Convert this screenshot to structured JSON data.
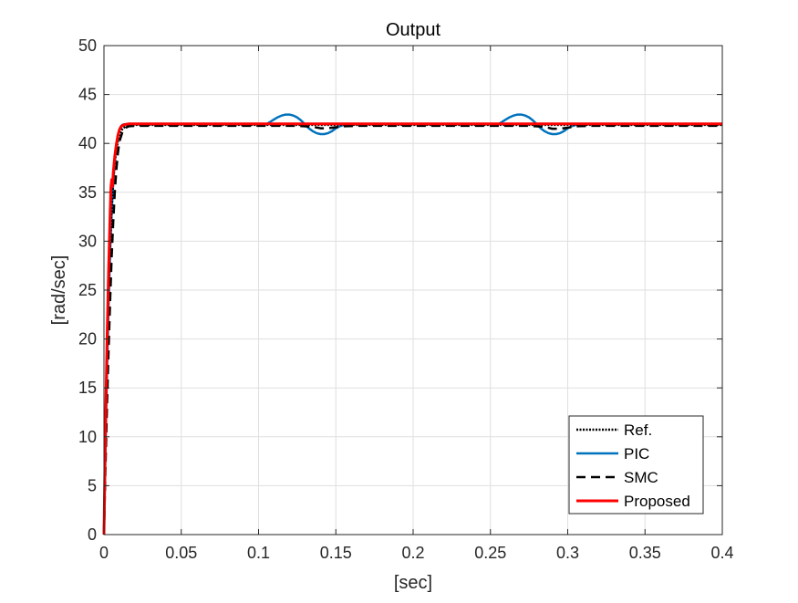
{
  "chart_data": {
    "type": "line",
    "title": "Output",
    "xlabel": "[sec]",
    "ylabel": "[rad/sec]",
    "xlim": [
      0,
      0.4
    ],
    "ylim": [
      0,
      50
    ],
    "xticks": [
      0,
      0.05,
      0.1,
      0.15,
      0.2,
      0.25,
      0.3,
      0.35,
      0.4
    ],
    "xtick_labels": [
      "0",
      "0.05",
      "0.1",
      "0.15",
      "0.2",
      "0.25",
      "0.3",
      "0.35",
      "0.4"
    ],
    "yticks": [
      0,
      5,
      10,
      15,
      20,
      25,
      30,
      35,
      40,
      45,
      50
    ],
    "ytick_labels": [
      "0",
      "5",
      "10",
      "15",
      "20",
      "25",
      "30",
      "35",
      "40",
      "45",
      "50"
    ],
    "grid": true,
    "legend_position": "bottom-right",
    "series": [
      {
        "name": "Ref.",
        "color": "#000000",
        "style": "dotted",
        "x": [
          0,
          0.001,
          0.002,
          0.003,
          0.004,
          0.005,
          0.006,
          0.007,
          0.008,
          0.009,
          0.01,
          0.012,
          0.014,
          0.016,
          0.02,
          0.03,
          0.1,
          0.2,
          0.3,
          0.4
        ],
        "y": [
          0,
          10,
          18.5,
          25,
          30,
          33.5,
          36.2,
          38,
          39.3,
          40.2,
          40.9,
          41.5,
          41.75,
          41.85,
          41.9,
          41.9,
          41.9,
          41.9,
          41.9,
          41.9
        ]
      },
      {
        "name": "PIC",
        "color": "#0072BD",
        "style": "solid",
        "x": [
          0,
          0.001,
          0.002,
          0.003,
          0.004,
          0.005,
          0.006,
          0.007,
          0.008,
          0.009,
          0.01,
          0.011,
          0.012,
          0.013,
          0.014,
          0.016,
          0.02,
          0.03,
          0.105,
          0.1075,
          0.11,
          0.1125,
          0.115,
          0.1175,
          0.12,
          0.1225,
          0.125,
          0.1275,
          0.13,
          0.1325,
          0.135,
          0.1375,
          0.14,
          0.1425,
          0.145,
          0.1475,
          0.15,
          0.1525,
          0.155,
          0.1575,
          0.16,
          0.255,
          0.2575,
          0.26,
          0.2625,
          0.265,
          0.2675,
          0.27,
          0.2725,
          0.275,
          0.2775,
          0.28,
          0.2825,
          0.285,
          0.2875,
          0.29,
          0.2925,
          0.295,
          0.2975,
          0.3,
          0.3025,
          0.305,
          0.3075,
          0.31,
          0.32,
          0.4
        ],
        "y": [
          0,
          9,
          17,
          23.5,
          29,
          33,
          36,
          38.3,
          39.8,
          40.8,
          41.4,
          41.75,
          41.9,
          41.95,
          41.95,
          41.95,
          41.95,
          41.95,
          41.95,
          42.2,
          42.45,
          42.68,
          42.85,
          42.95,
          42.95,
          42.85,
          42.65,
          42.35,
          41.95,
          41.55,
          41.25,
          41.05,
          40.95,
          40.95,
          41.05,
          41.25,
          41.55,
          41.75,
          41.88,
          41.93,
          41.95,
          41.95,
          42.2,
          42.45,
          42.68,
          42.85,
          42.95,
          42.95,
          42.85,
          42.65,
          42.35,
          41.95,
          41.55,
          41.25,
          41.05,
          40.95,
          40.95,
          41.05,
          41.25,
          41.55,
          41.75,
          41.88,
          41.93,
          41.95,
          41.95,
          41.95
        ]
      },
      {
        "name": "SMC",
        "color": "#000000",
        "style": "dashed",
        "x": [
          0,
          0.001,
          0.002,
          0.003,
          0.004,
          0.005,
          0.006,
          0.007,
          0.008,
          0.009,
          0.01,
          0.012,
          0.014,
          0.016,
          0.02,
          0.03,
          0.11,
          0.125,
          0.135,
          0.14,
          0.145,
          0.15,
          0.155,
          0.165,
          0.26,
          0.275,
          0.285,
          0.29,
          0.295,
          0.3,
          0.305,
          0.315,
          0.4
        ],
        "y": [
          0,
          7,
          13.5,
          19,
          24,
          28.5,
          32,
          35,
          37.3,
          39,
          40.2,
          41.2,
          41.6,
          41.75,
          41.8,
          41.8,
          41.8,
          41.8,
          41.7,
          41.55,
          41.55,
          41.65,
          41.75,
          41.8,
          41.8,
          41.8,
          41.7,
          41.5,
          41.5,
          41.6,
          41.75,
          41.8,
          41.8
        ]
      },
      {
        "name": "Proposed",
        "color": "#FF0000",
        "style": "solid",
        "x": [
          0,
          0.001,
          0.002,
          0.003,
          0.004,
          0.0045,
          0.005,
          0.0055,
          0.006,
          0.007,
          0.008,
          0.009,
          0.01,
          0.011,
          0.012,
          0.014,
          0.016,
          0.02,
          0.03,
          0.1,
          0.2,
          0.3,
          0.4
        ],
        "y": [
          0,
          11,
          20,
          27,
          33,
          35.5,
          36.3,
          35.6,
          37,
          38.7,
          39.9,
          40.8,
          41.4,
          41.7,
          41.85,
          41.95,
          42,
          42,
          42,
          42,
          42,
          42,
          42
        ]
      }
    ]
  }
}
